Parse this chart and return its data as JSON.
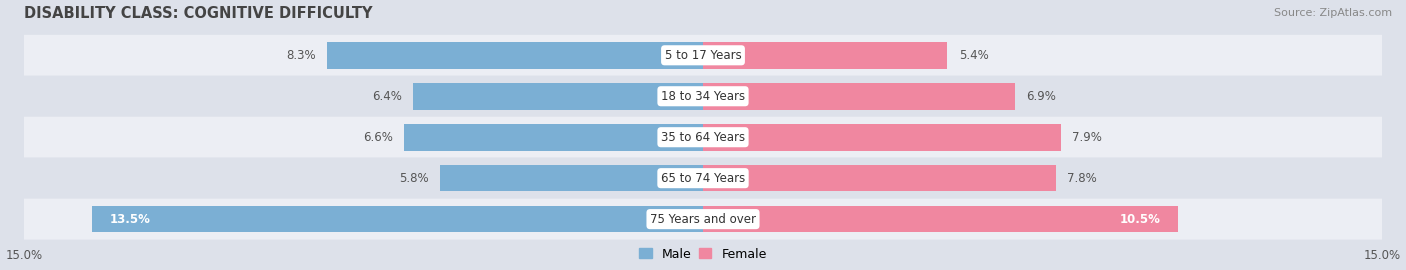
{
  "title": "DISABILITY CLASS: COGNITIVE DIFFICULTY",
  "source": "Source: ZipAtlas.com",
  "categories": [
    "5 to 17 Years",
    "18 to 34 Years",
    "35 to 64 Years",
    "65 to 74 Years",
    "75 Years and over"
  ],
  "male_values": [
    8.3,
    6.4,
    6.6,
    5.8,
    13.5
  ],
  "female_values": [
    5.4,
    6.9,
    7.9,
    7.8,
    10.5
  ],
  "xlim": 15.0,
  "male_color": "#7bafd4",
  "female_color": "#f087a0",
  "male_label": "Male",
  "female_label": "Female",
  "bg_color": "#dde1ea",
  "row_bg_colors": [
    "#eceef4",
    "#dde1ea"
  ],
  "title_color": "#444444",
  "center_label_color": "#333333",
  "value_color_outside": "#555555",
  "value_color_inside": "#ffffff",
  "axis_label_color": "#555555",
  "font_size_title": 10.5,
  "font_size_bar_label": 8.5,
  "font_size_center_label": 8.5,
  "font_size_axis": 8.5,
  "font_size_legend": 9,
  "font_size_source": 8
}
